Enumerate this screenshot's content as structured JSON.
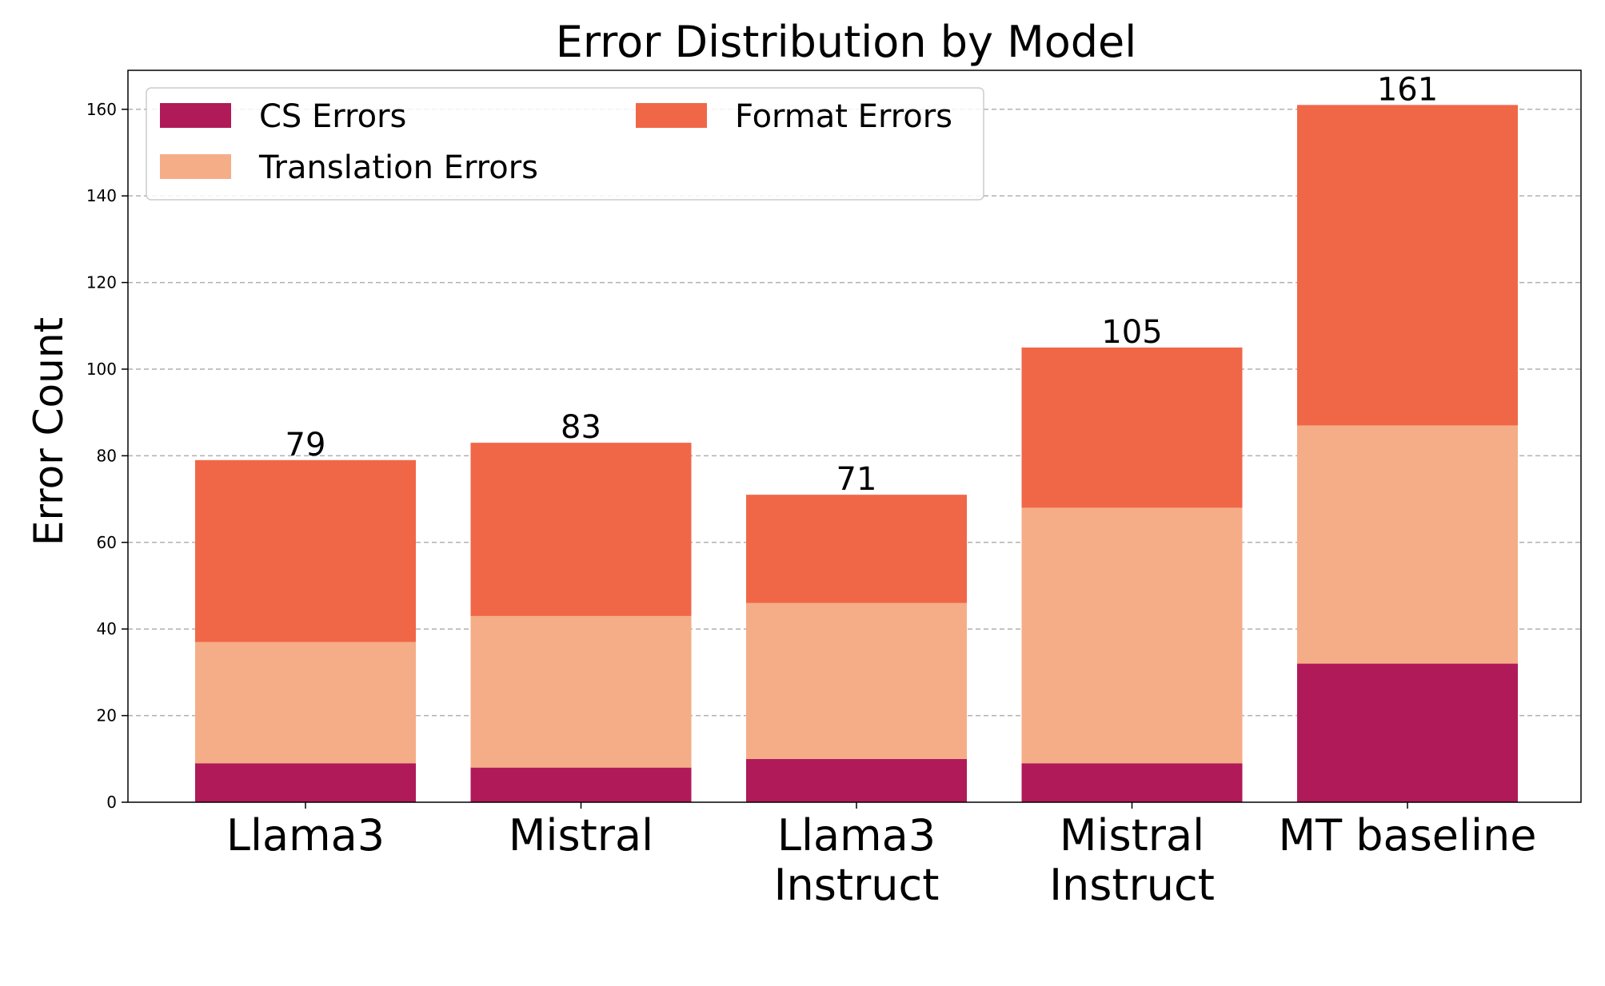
{
  "chart_data": {
    "type": "bar",
    "stacked": true,
    "title": "Error Distribution by Model",
    "xlabel": "",
    "ylabel": "Error Count",
    "ylim": [
      0,
      169
    ],
    "yticks": [
      0,
      20,
      40,
      60,
      80,
      100,
      120,
      140,
      160
    ],
    "grid": true,
    "legend_position": "top-left",
    "categories": [
      [
        "Llama3"
      ],
      [
        "Mistral"
      ],
      [
        "Llama3",
        "Instruct"
      ],
      [
        "Mistral",
        "Instruct"
      ],
      [
        "MT baseline"
      ]
    ],
    "series": [
      {
        "name": "CS Errors",
        "color": "#b01a58",
        "values": [
          9,
          8,
          10,
          9,
          32
        ]
      },
      {
        "name": "Translation Errors",
        "color": "#f5ad87",
        "values": [
          28,
          35,
          36,
          59,
          55
        ]
      },
      {
        "name": "Format Errors",
        "color": "#f06748",
        "values": [
          42,
          40,
          25,
          37,
          74
        ]
      }
    ],
    "totals": [
      79,
      83,
      71,
      105,
      161
    ]
  }
}
